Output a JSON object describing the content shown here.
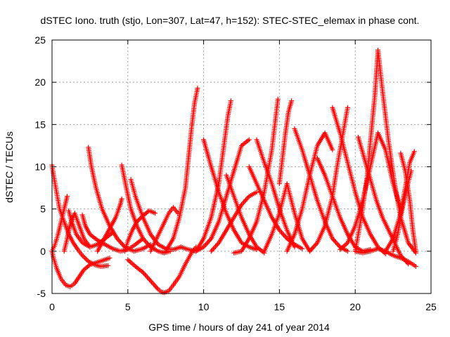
{
  "chart_data": {
    "type": "scatter",
    "title": "dSTEC Iono. truth (stjo, Lon=307, Lat=47, h=152): STEC-STEC_elemax in phase cont.",
    "xlabel": "GPS time / hours of day 241 of year 2014",
    "ylabel": "dSTEC  / TECUs",
    "xlim": [
      0,
      25
    ],
    "ylim": [
      -5,
      25
    ],
    "xticks": [
      0,
      5,
      10,
      15,
      20,
      25
    ],
    "yticks": [
      -5,
      0,
      5,
      10,
      15,
      20,
      25
    ],
    "x_tick_labels": [
      "0",
      "5",
      "10",
      "15",
      "20",
      "25"
    ],
    "y_tick_labels": [
      "-5",
      "0",
      "5",
      "10",
      "15",
      "20",
      "25"
    ],
    "grid": true,
    "marker": "+",
    "color": "#ff0000",
    "series": [
      {
        "x": [
          0.0,
          0.1,
          0.3,
          0.6,
          0.9,
          1.2,
          1.5,
          1.8,
          2.1,
          2.5,
          3.0,
          3.5,
          3.8
        ],
        "y": [
          0,
          -0.8,
          -2.0,
          -3.3,
          -4.0,
          -4.2,
          -3.8,
          -3.0,
          -2.2,
          -1.6,
          -1.3,
          -1.0,
          -0.8
        ]
      },
      {
        "x": [
          0.0,
          0.1,
          0.3,
          0.5,
          0.8,
          1.1,
          1.4,
          1.7,
          2.0,
          2.4,
          2.8,
          3.2,
          3.7
        ],
        "y": [
          10.2,
          9.0,
          7.0,
          5.0,
          3.5,
          2.0,
          1.0,
          0.2,
          -0.5,
          -1.2,
          -1.6,
          -1.8,
          -1.7
        ]
      },
      {
        "x": [
          0.0,
          0.2,
          0.4,
          0.6,
          0.8,
          1.0
        ],
        "y": [
          0,
          0.8,
          2.0,
          3.5,
          5.0,
          6.5
        ]
      },
      {
        "x": [
          0.8,
          1.0,
          1.2,
          1.5,
          1.8,
          2.1,
          2.5
        ],
        "y": [
          0,
          1.5,
          3.2,
          4.5,
          3.0,
          1.5,
          0.5
        ]
      },
      {
        "x": [
          1.1,
          1.3,
          1.6,
          2.0,
          2.5,
          3.0,
          3.5,
          4.0
        ],
        "y": [
          4.8,
          3.5,
          2.0,
          1.0,
          0.5,
          0.8,
          1.5,
          2.2
        ]
      },
      {
        "x": [
          2.0,
          2.2,
          2.5,
          3.0,
          3.5,
          4.0,
          4.5,
          5.0,
          5.5,
          6.0
        ],
        "y": [
          4.3,
          3.0,
          2.0,
          1.3,
          0.8,
          0.3,
          0.0,
          0.2,
          0.8,
          1.5
        ]
      },
      {
        "x": [
          2.4,
          2.6,
          2.9,
          3.3,
          3.8,
          4.3,
          4.8,
          5.4,
          6.0,
          6.5
        ],
        "y": [
          12.3,
          10.0,
          7.5,
          5.0,
          3.0,
          1.5,
          0.5,
          0.0,
          0.3,
          0.8
        ]
      },
      {
        "x": [
          3.0,
          3.3,
          3.6,
          3.9,
          4.2,
          4.5,
          4.6
        ],
        "y": [
          0,
          1.0,
          2.0,
          3.0,
          4.0,
          5.5,
          6.2
        ]
      },
      {
        "x": [
          4.6,
          4.9,
          5.2,
          5.6,
          6.0,
          6.5,
          7.0,
          7.4,
          7.8
        ],
        "y": [
          10.2,
          7.5,
          5.0,
          3.0,
          1.5,
          0.5,
          0.0,
          -0.2,
          0.0
        ]
      },
      {
        "x": [
          4.8,
          5.0,
          5.3,
          5.6,
          6.0,
          6.4,
          6.8
        ],
        "y": [
          0,
          1.2,
          2.5,
          3.5,
          4.2,
          4.8,
          4.5
        ]
      },
      {
        "x": [
          5.2,
          5.5,
          6.0,
          6.5,
          7.0,
          7.5,
          8.0,
          8.5
        ],
        "y": [
          8.5,
          6.5,
          4.0,
          2.0,
          0.8,
          0.3,
          0.2,
          0.5
        ]
      },
      {
        "x": [
          5.0,
          5.5,
          6.0,
          6.5,
          7.0,
          7.2,
          7.4,
          7.7,
          8.0,
          8.4,
          8.8,
          9.2,
          9.5
        ],
        "y": [
          -1.0,
          -1.8,
          -2.5,
          -3.5,
          -4.5,
          -4.8,
          -4.9,
          -4.7,
          -4.0,
          -3.0,
          -1.5,
          -0.2,
          0.5
        ]
      },
      {
        "x": [
          6.5,
          6.9,
          7.3,
          7.7,
          8.0,
          8.3
        ],
        "y": [
          0,
          1.5,
          3.0,
          4.5,
          5.2,
          4.5
        ]
      },
      {
        "x": [
          7.5,
          8.0,
          8.4,
          8.8,
          9.0,
          9.2,
          9.4,
          9.6
        ],
        "y": [
          0,
          1.5,
          4.0,
          7.5,
          11.0,
          14.5,
          17.5,
          19.3
        ]
      },
      {
        "x": [
          8.5,
          9.0,
          9.5,
          10.0,
          10.5,
          11.0,
          11.5,
          12.0,
          12.5,
          13.0
        ],
        "y": [
          0.5,
          0.2,
          0.0,
          0.5,
          1.5,
          3.5,
          6.5,
          9.5,
          12.5,
          13.2
        ]
      },
      {
        "x": [
          9.5,
          10.0,
          10.5,
          11.0,
          11.3,
          11.6,
          11.8
        ],
        "y": [
          0,
          1.5,
          4.0,
          8.0,
          12.0,
          16.0,
          17.8
        ]
      },
      {
        "x": [
          10.0,
          10.5,
          11.0,
          11.5,
          12.0,
          12.5,
          13.0,
          13.5
        ],
        "y": [
          13.2,
          10.0,
          7.0,
          4.5,
          2.5,
          1.0,
          0.5,
          0.2
        ]
      },
      {
        "x": [
          10.5,
          11.0,
          11.5,
          12.0,
          12.5,
          13.0,
          13.5
        ],
        "y": [
          0,
          1.0,
          2.5,
          4.0,
          5.5,
          6.5,
          7.0
        ]
      },
      {
        "x": [
          11.5,
          12.0,
          12.5,
          13.0,
          13.5,
          14.0
        ],
        "y": [
          9.0,
          6.5,
          4.0,
          2.0,
          0.5,
          -0.2
        ]
      },
      {
        "x": [
          12.0,
          12.5,
          13.0,
          13.5,
          14.0,
          14.5,
          14.9
        ],
        "y": [
          -0.2,
          0.0,
          1.5,
          3.5,
          7.0,
          12.0,
          18.0
        ]
      },
      {
        "x": [
          13.0,
          13.5,
          14.0,
          14.5,
          15.0,
          15.5,
          16.0,
          16.5
        ],
        "y": [
          10.0,
          8.0,
          6.0,
          4.0,
          2.5,
          1.5,
          0.8,
          0.3
        ]
      },
      {
        "x": [
          13.5,
          14.0,
          14.5,
          15.0,
          15.5,
          16.0
        ],
        "y": [
          13.2,
          10.5,
          8.0,
          5.0,
          2.5,
          0.5
        ]
      },
      {
        "x": [
          14.0,
          14.5,
          15.0,
          15.5,
          16.0,
          16.5,
          17.0
        ],
        "y": [
          0,
          2.0,
          4.5,
          8.0,
          4.5,
          1.5,
          0.0
        ]
      },
      {
        "x": [
          15.0,
          15.2,
          15.4,
          15.6,
          15.8
        ],
        "y": [
          8.0,
          11.0,
          14.0,
          16.5,
          17.8
        ]
      },
      {
        "x": [
          15.5,
          16.0,
          16.5,
          17.0,
          17.5,
          18.0,
          18.5
        ],
        "y": [
          0,
          2.0,
          5.0,
          9.0,
          12.5,
          14.0,
          12.0
        ]
      },
      {
        "x": [
          16.0,
          16.5,
          17.0,
          17.5,
          18.0,
          18.5,
          19.0,
          19.5
        ],
        "y": [
          14.5,
          12.0,
          9.0,
          6.0,
          3.5,
          1.5,
          0.5,
          0.0
        ]
      },
      {
        "x": [
          17.0,
          17.5,
          18.0,
          18.5,
          18.8,
          19.2,
          19.5
        ],
        "y": [
          0,
          1.0,
          3.0,
          6.5,
          10.0,
          14.0,
          17.0
        ]
      },
      {
        "x": [
          17.5,
          18.0,
          18.5,
          19.0,
          19.5,
          20.0,
          20.5,
          21.0
        ],
        "y": [
          11.0,
          9.0,
          6.5,
          4.0,
          2.0,
          0.5,
          0.0,
          0.2
        ]
      },
      {
        "x": [
          18.5,
          19.0,
          19.5,
          20.0,
          20.5,
          21.0,
          21.5,
          22.0
        ],
        "y": [
          17.0,
          14.0,
          10.5,
          7.0,
          4.0,
          2.0,
          0.5,
          -0.3
        ]
      },
      {
        "x": [
          19.0,
          19.5,
          20.0,
          20.5,
          21.0,
          21.5,
          22.0,
          22.5,
          23.0
        ],
        "y": [
          0.2,
          1.0,
          3.0,
          6.0,
          10.0,
          14.0,
          12.0,
          8.0,
          5.0
        ]
      },
      {
        "x": [
          20.0,
          20.4,
          20.8,
          21.0,
          21.3,
          21.5
        ],
        "y": [
          0,
          4.0,
          9.0,
          13.0,
          18.5,
          23.8
        ]
      },
      {
        "x": [
          21.5,
          21.8,
          22.2,
          22.6,
          23.0,
          23.5,
          24.0
        ],
        "y": [
          23.8,
          19.0,
          13.0,
          8.0,
          4.0,
          1.0,
          -0.2
        ]
      },
      {
        "x": [
          20.2,
          20.6,
          21.0,
          21.4,
          21.8,
          22.2,
          22.6,
          23.0,
          23.5
        ],
        "y": [
          13.5,
          11.0,
          8.5,
          6.0,
          4.0,
          2.5,
          1.0,
          -0.5,
          -1.5
        ]
      },
      {
        "x": [
          20.0,
          20.5,
          21.0,
          21.5,
          22.0,
          22.5,
          23.0,
          23.5,
          24.0
        ],
        "y": [
          0.0,
          -0.2,
          0.0,
          0.3,
          0.0,
          -0.5,
          -0.8,
          -1.2,
          -1.8
        ]
      },
      {
        "x": [
          22.0,
          22.5,
          23.0,
          23.3,
          23.6,
          23.9
        ],
        "y": [
          0,
          1.5,
          4.5,
          7.5,
          10.5,
          11.8
        ]
      },
      {
        "x": [
          23.0,
          23.3,
          23.6,
          23.8,
          24.0
        ],
        "y": [
          11.6,
          9.5,
          6.0,
          2.5,
          0.0
        ]
      },
      {
        "x": [
          22.5,
          22.8,
          23.1,
          23.4,
          23.7
        ],
        "y": [
          0,
          2.0,
          5.0,
          7.5,
          9.5
        ]
      }
    ]
  }
}
